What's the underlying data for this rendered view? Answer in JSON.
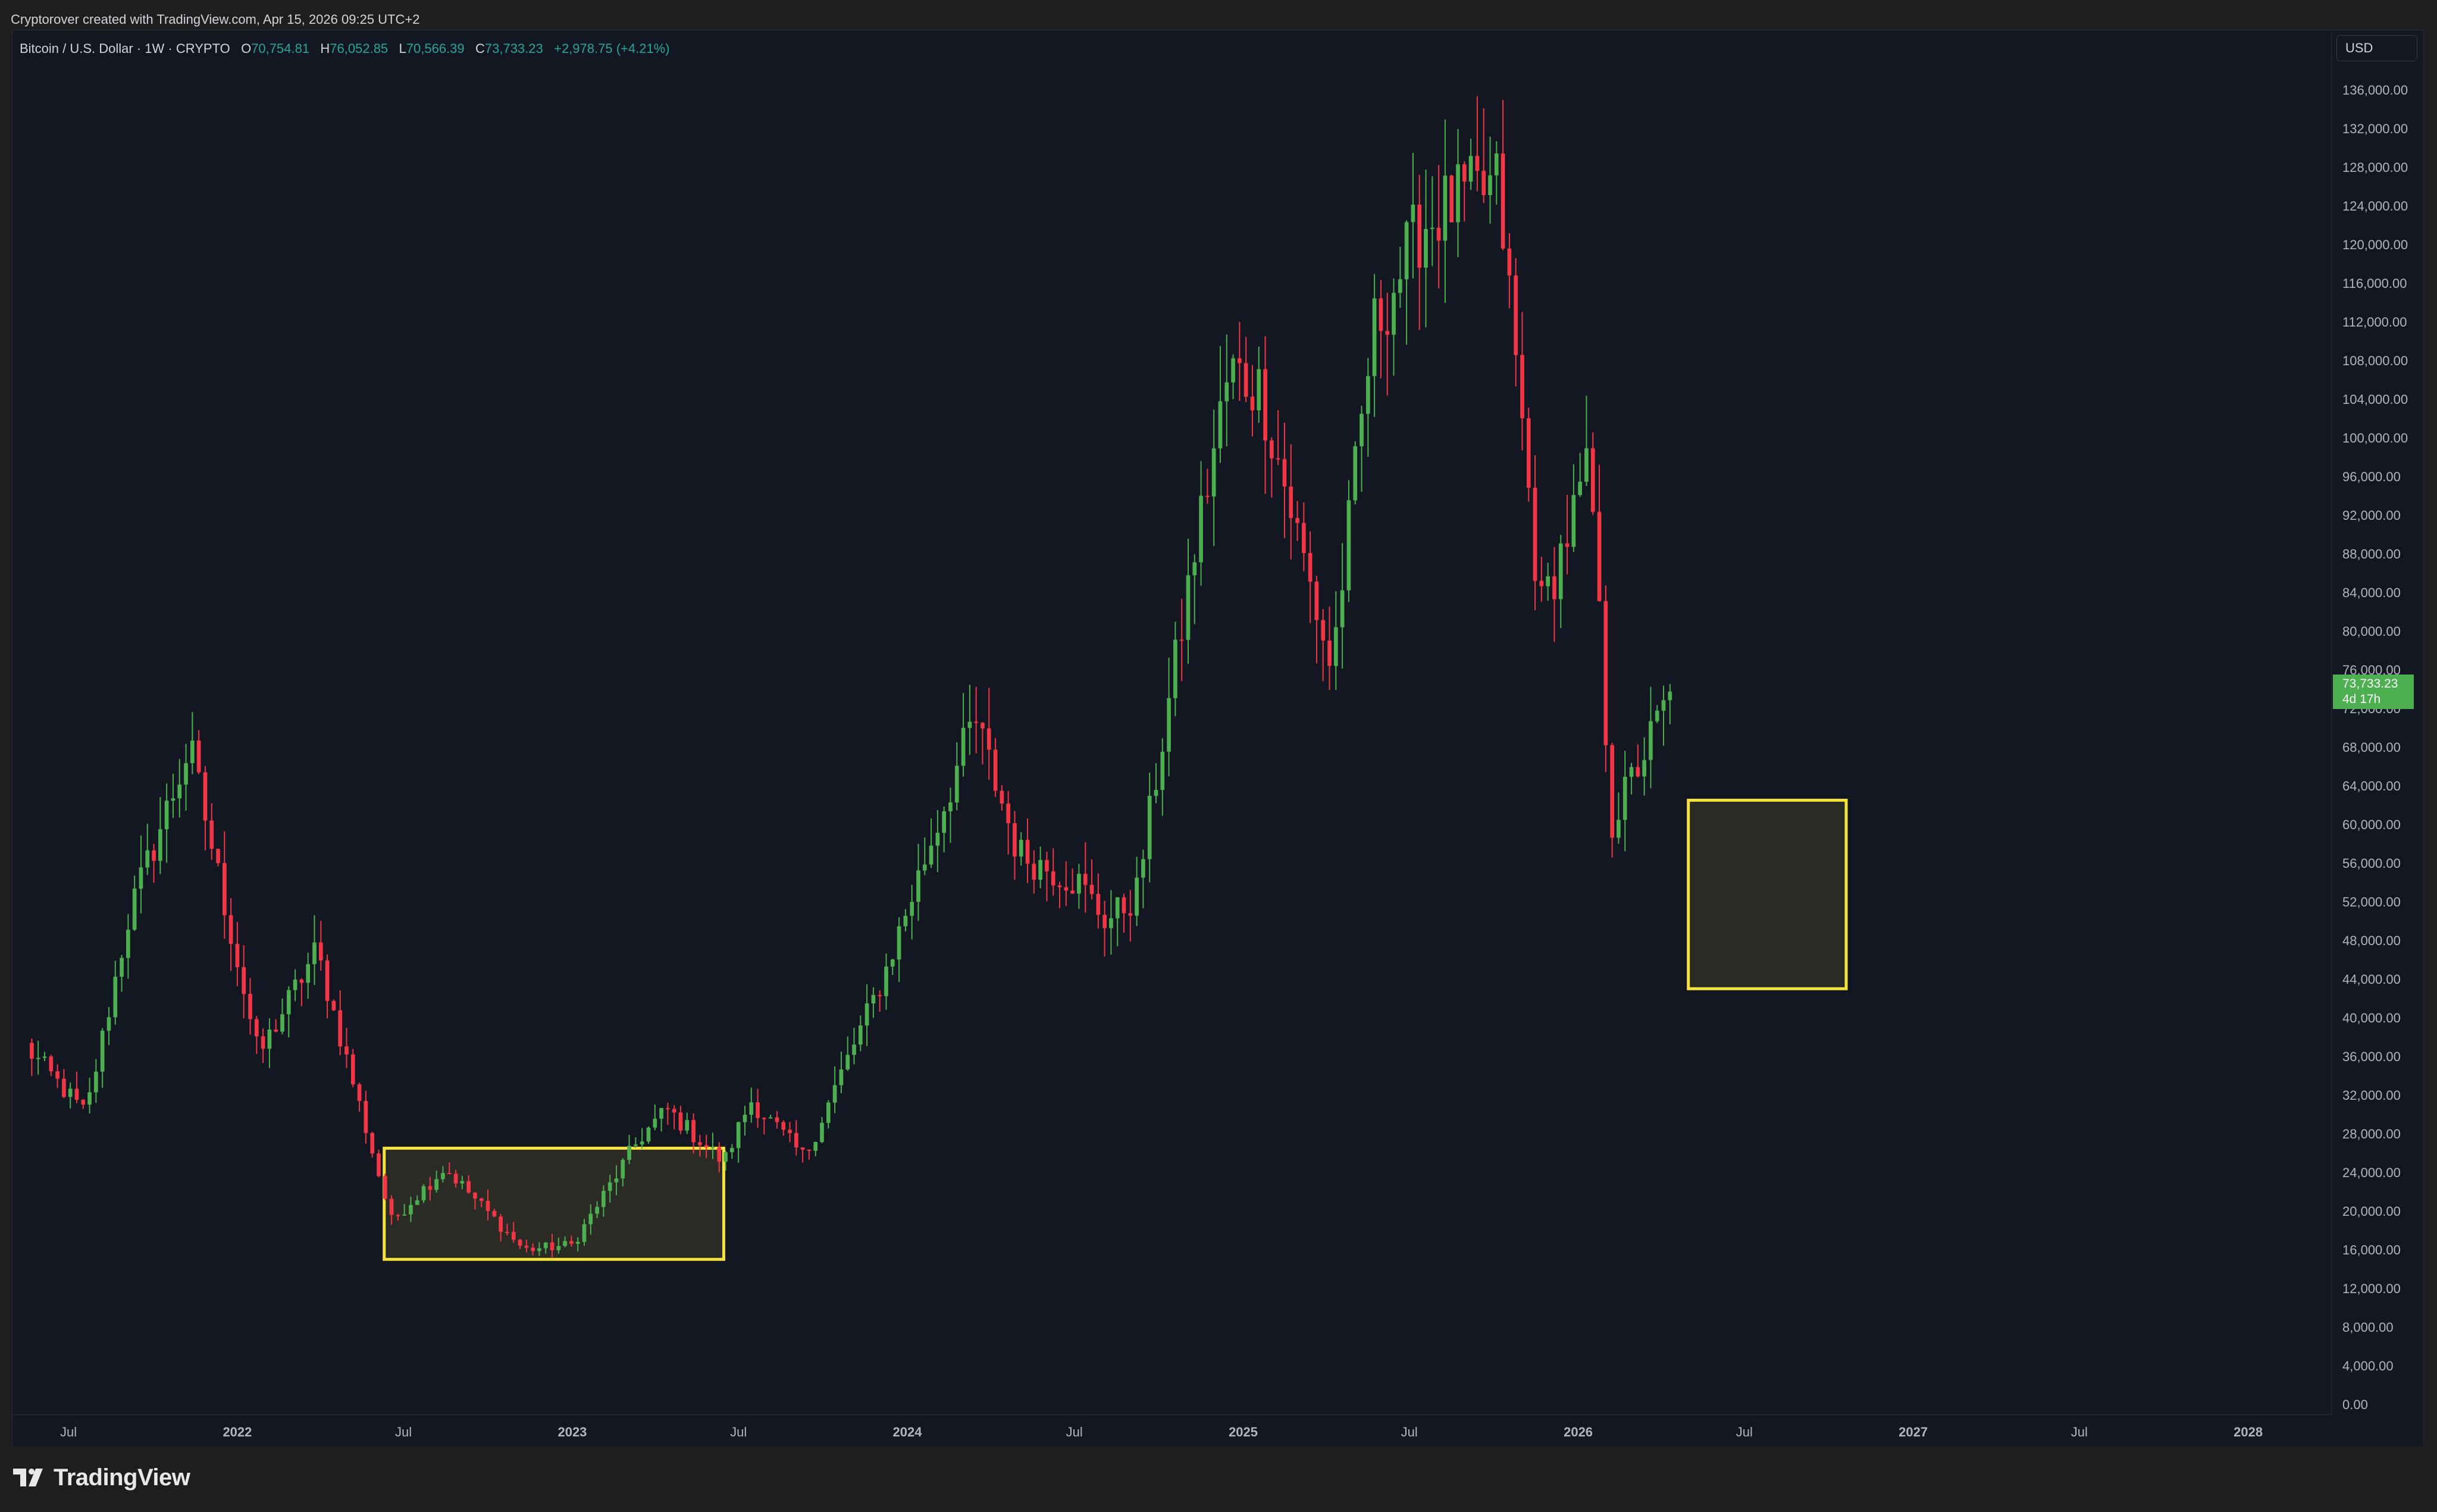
{
  "header": {
    "attribution": "Cryptorover created with TradingView.com, Apr 15, 2026 09:25 UTC+2"
  },
  "legend": {
    "symbol": "Bitcoin / U.S. Dollar · 1W · CRYPTO",
    "open_label": "O",
    "open": "70,754.81",
    "high_label": "H",
    "high": "76,052.85",
    "low_label": "L",
    "low": "70,566.39",
    "close_label": "C",
    "close": "73,733.23",
    "change": "+2,978.75 (+4.21%)"
  },
  "currency_button": "USD",
  "last_price_label": {
    "price": "73,733.23",
    "countdown": "4d 17h"
  },
  "brand": {
    "name": "TradingView"
  },
  "colors": {
    "background": "#131722",
    "up": "#4caf50",
    "down": "#f23645",
    "highlight_box": "#f5e23a"
  },
  "chart_data": {
    "type": "candlestick",
    "title": "Bitcoin / U.S. Dollar · 1W · CRYPTO",
    "timeframe": "1W",
    "x_tick_labels": [
      "Jul",
      "2022",
      "Jul",
      "2023",
      "Jul",
      "2024",
      "Jul",
      "2025",
      "Jul",
      "2026",
      "Jul",
      "2027",
      "Jul",
      "2028"
    ],
    "x_tick_dates": [
      "2021-07-01",
      "2022-01-01",
      "2022-07-01",
      "2023-01-01",
      "2023-07-01",
      "2024-01-01",
      "2024-07-01",
      "2025-01-01",
      "2025-07-01",
      "2026-01-01",
      "2026-07-01",
      "2027-01-01",
      "2027-07-01",
      "2028-01-01"
    ],
    "x_range": [
      "2021-05-01",
      "2028-04-01"
    ],
    "ylim": [
      0,
      138000
    ],
    "y_ticks": [
      0,
      4000,
      8000,
      12000,
      16000,
      20000,
      24000,
      28000,
      32000,
      36000,
      40000,
      44000,
      48000,
      52000,
      56000,
      60000,
      64000,
      68000,
      72000,
      76000,
      80000,
      84000,
      88000,
      92000,
      96000,
      100000,
      104000,
      108000,
      112000,
      116000,
      120000,
      124000,
      128000,
      132000,
      136000
    ],
    "y_tick_labels": [
      "0.00",
      "4,000.00",
      "8,000.00",
      "12,000.00",
      "16,000.00",
      "20,000.00",
      "24,000.00",
      "28,000.00",
      "32,000.00",
      "36,000.00",
      "40,000.00",
      "44,000.00",
      "48,000.00",
      "52,000.00",
      "56,000.00",
      "60,000.00",
      "64,000.00",
      "68,000.00",
      "72,000.00",
      "76,000.00",
      "80,000.00",
      "84,000.00",
      "88,000.00",
      "92,000.00",
      "96,000.00",
      "100,000.00",
      "104,000.00",
      "108,000.00",
      "112,000.00",
      "116,000.00",
      "120,000.00",
      "124,000.00",
      "128,000.00",
      "132,000.00",
      "136,000.00"
    ],
    "bold_tick_labels": [
      "2022",
      "2023",
      "2024",
      "2025",
      "2026",
      "2027",
      "2028"
    ],
    "last_price": 73733.23,
    "key_points": [
      {
        "date": "2021-05-15",
        "close": 37000
      },
      {
        "date": "2021-07-20",
        "close": 30000
      },
      {
        "date": "2021-09-06",
        "close": 51000
      },
      {
        "date": "2021-11-10",
        "close": 68000
      },
      {
        "date": "2022-01-24",
        "close": 36000
      },
      {
        "date": "2022-03-28",
        "close": 47000
      },
      {
        "date": "2022-06-18",
        "close": 19000
      },
      {
        "date": "2022-08-15",
        "close": 24500
      },
      {
        "date": "2022-11-09",
        "close": 16000
      },
      {
        "date": "2023-01-01",
        "close": 16500
      },
      {
        "date": "2023-03-15",
        "close": 27500
      },
      {
        "date": "2023-04-14",
        "close": 30500
      },
      {
        "date": "2023-06-15",
        "close": 25000
      },
      {
        "date": "2023-07-14",
        "close": 31500
      },
      {
        "date": "2023-09-11",
        "close": 25500
      },
      {
        "date": "2023-12-05",
        "close": 44000
      },
      {
        "date": "2024-03-14",
        "close": 71000
      },
      {
        "date": "2024-05-01",
        "close": 57000
      },
      {
        "date": "2024-07-05",
        "close": 54000
      },
      {
        "date": "2024-08-05",
        "close": 50000
      },
      {
        "date": "2024-09-06",
        "close": 52500
      },
      {
        "date": "2024-11-12",
        "close": 90000
      },
      {
        "date": "2024-12-17",
        "close": 107000
      },
      {
        "date": "2025-01-20",
        "close": 105000
      },
      {
        "date": "2025-04-07",
        "close": 76000
      },
      {
        "date": "2025-05-22",
        "close": 111000
      },
      {
        "date": "2025-07-14",
        "close": 122000
      },
      {
        "date": "2025-08-14",
        "close": 124000
      },
      {
        "date": "2025-10-06",
        "close": 126000
      },
      {
        "date": "2025-11-21",
        "close": 82000
      },
      {
        "date": "2026-01-14",
        "close": 97000
      },
      {
        "date": "2026-02-06",
        "close": 60000
      },
      {
        "date": "2026-04-13",
        "close": 73733.23
      }
    ],
    "highlight_boxes": [
      {
        "from": "2022-06-10",
        "to": "2023-06-15",
        "low": 15000,
        "high": 26500
      },
      {
        "from": "2026-05-01",
        "to": "2026-10-20",
        "low": 43000,
        "high": 62500
      }
    ]
  }
}
